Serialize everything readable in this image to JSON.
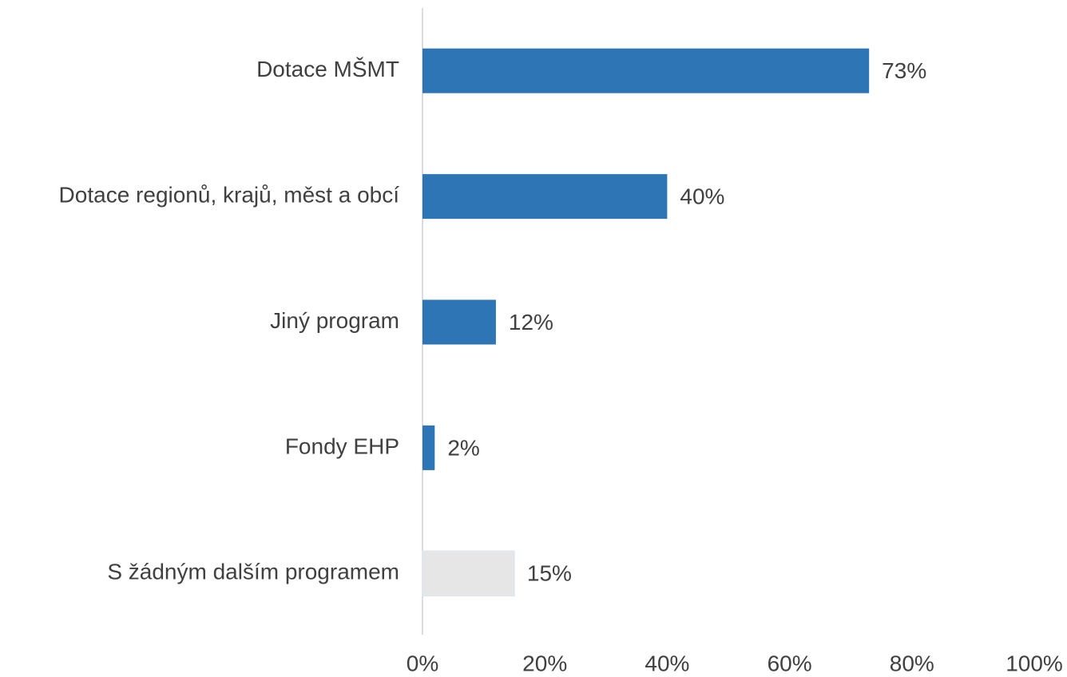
{
  "chart_data": {
    "type": "hbar",
    "categories": [
      "Dotace MŠMT",
      "Dotace regionů, krajů, měst a obcí",
      "Jiný program",
      "Fondy EHP",
      "S žádným dalším programem"
    ],
    "values": [
      73,
      40,
      12,
      2,
      15
    ],
    "value_labels": [
      "73%",
      "40%",
      "12%",
      "2%",
      "15%"
    ],
    "colors": [
      "#2e75b6",
      "#2e75b6",
      "#2e75b6",
      "#2e75b6",
      "#e7e6e6"
    ],
    "xlim": [
      0,
      100
    ],
    "xticks": [
      {
        "value": 0,
        "label": "0%"
      },
      {
        "value": 20,
        "label": "20%"
      },
      {
        "value": 40,
        "label": "40%"
      },
      {
        "value": 60,
        "label": "60%"
      },
      {
        "value": 80,
        "label": "80%"
      },
      {
        "value": 100,
        "label": "100%"
      }
    ],
    "grid": false
  }
}
